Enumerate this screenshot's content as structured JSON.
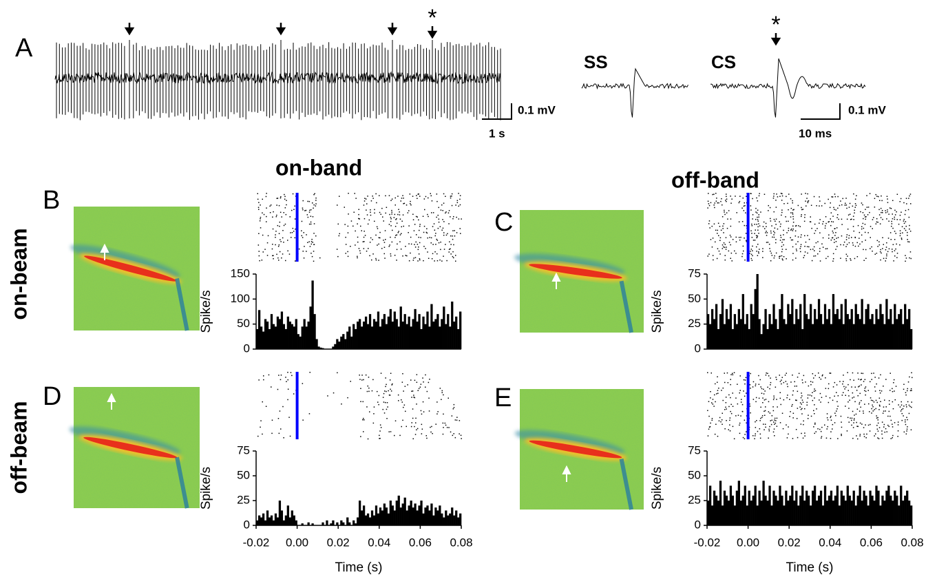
{
  "panel_a": {
    "label": "A",
    "ss": "SS",
    "cs": "CS",
    "star_trace": "*",
    "star_cs": "*",
    "trace_scale_v": "0.1 mV",
    "trace_scale_t": "1 s",
    "wave_scale_v": "0.1 mV",
    "wave_scale_t": "10 ms"
  },
  "column_headers": [
    "on-band",
    "off-band"
  ],
  "row_headers": [
    "on-beam",
    "off-beam"
  ],
  "chart_data": [
    {
      "type": "histogram",
      "panel": "B",
      "ylabel": "Spike/s",
      "color": "#000000",
      "stimulus": 0,
      "stimulus_color": "#0000ff",
      "xlim": [
        -0.02,
        0.08
      ],
      "ylim": [
        0,
        150
      ],
      "yticks": [
        0,
        50,
        100,
        150
      ],
      "bins": [
        -0.02,
        -0.019,
        -0.018,
        -0.017,
        -0.016,
        -0.015,
        -0.014,
        -0.013,
        -0.012,
        -0.011,
        -0.01,
        -0.009,
        -0.008,
        -0.007,
        -0.006,
        -0.005,
        -0.004,
        -0.003,
        -0.002,
        -0.001,
        0,
        0.001,
        0.002,
        0.003,
        0.004,
        0.005,
        0.006,
        0.007,
        0.008,
        0.009,
        0.01,
        0.011,
        0.012,
        0.013,
        0.014,
        0.015,
        0.016,
        0.017,
        0.018,
        0.019,
        0.02,
        0.021,
        0.022,
        0.023,
        0.024,
        0.025,
        0.026,
        0.027,
        0.028,
        0.029,
        0.03,
        0.031,
        0.032,
        0.033,
        0.034,
        0.035,
        0.036,
        0.037,
        0.038,
        0.039,
        0.04,
        0.041,
        0.042,
        0.043,
        0.044,
        0.045,
        0.046,
        0.047,
        0.048,
        0.049,
        0.05,
        0.051,
        0.052,
        0.053,
        0.054,
        0.055,
        0.056,
        0.057,
        0.058,
        0.059,
        0.06,
        0.061,
        0.062,
        0.063,
        0.064,
        0.065,
        0.066,
        0.067,
        0.068,
        0.069,
        0.07,
        0.071,
        0.072,
        0.073,
        0.074,
        0.075,
        0.076,
        0.077,
        0.078,
        0.079,
        0.08
      ],
      "values": [
        40,
        78,
        45,
        35,
        60,
        55,
        40,
        70,
        50,
        45,
        65,
        60,
        75,
        50,
        40,
        65,
        55,
        50,
        45,
        60,
        30,
        25,
        45,
        60,
        45,
        55,
        85,
        137,
        70,
        20,
        5,
        3,
        2,
        0,
        0,
        0,
        0,
        5,
        10,
        20,
        15,
        25,
        30,
        20,
        35,
        45,
        25,
        50,
        40,
        55,
        60,
        45,
        55,
        65,
        50,
        70,
        45,
        60,
        55,
        75,
        45,
        60,
        70,
        50,
        65,
        80,
        55,
        75,
        60,
        45,
        85,
        55,
        70,
        50,
        65,
        45,
        60,
        80,
        55,
        70,
        40,
        65,
        50,
        75,
        45,
        90,
        55,
        60,
        70,
        45,
        60,
        85,
        50,
        70,
        45,
        95,
        55,
        65,
        40,
        75
      ]
    },
    {
      "type": "histogram",
      "panel": "C",
      "ylabel": "Spike/s",
      "color": "#000000",
      "stimulus": 0,
      "stimulus_color": "#0000ff",
      "xlim": [
        -0.02,
        0.08
      ],
      "ylim": [
        0,
        75
      ],
      "yticks": [
        0,
        25,
        50,
        75
      ],
      "bins": [
        -0.02,
        -0.019,
        -0.018,
        -0.017,
        -0.016,
        -0.015,
        -0.014,
        -0.013,
        -0.012,
        -0.011,
        -0.01,
        -0.009,
        -0.008,
        -0.007,
        -0.006,
        -0.005,
        -0.004,
        -0.003,
        -0.002,
        -0.001,
        0,
        0.001,
        0.002,
        0.003,
        0.004,
        0.005,
        0.006,
        0.007,
        0.008,
        0.009,
        0.01,
        0.011,
        0.012,
        0.013,
        0.014,
        0.015,
        0.016,
        0.017,
        0.018,
        0.019,
        0.02,
        0.021,
        0.022,
        0.023,
        0.024,
        0.025,
        0.026,
        0.027,
        0.028,
        0.029,
        0.03,
        0.031,
        0.032,
        0.033,
        0.034,
        0.035,
        0.036,
        0.037,
        0.038,
        0.039,
        0.04,
        0.041,
        0.042,
        0.043,
        0.044,
        0.045,
        0.046,
        0.047,
        0.048,
        0.049,
        0.05,
        0.051,
        0.052,
        0.053,
        0.054,
        0.055,
        0.056,
        0.057,
        0.058,
        0.059,
        0.06,
        0.061,
        0.062,
        0.063,
        0.064,
        0.065,
        0.066,
        0.067,
        0.068,
        0.069,
        0.07,
        0.071,
        0.072,
        0.073,
        0.074,
        0.075,
        0.076,
        0.077,
        0.078,
        0.079,
        0.08
      ],
      "values": [
        35,
        25,
        40,
        30,
        45,
        20,
        35,
        50,
        25,
        40,
        30,
        45,
        20,
        35,
        25,
        40,
        30,
        55,
        25,
        35,
        20,
        45,
        35,
        60,
        75,
        30,
        15,
        25,
        40,
        20,
        35,
        25,
        45,
        30,
        20,
        40,
        55,
        30,
        25,
        45,
        35,
        50,
        25,
        40,
        30,
        45,
        20,
        55,
        35,
        30,
        45,
        25,
        40,
        30,
        50,
        35,
        25,
        45,
        30,
        40,
        25,
        55,
        35,
        40,
        30,
        45,
        25,
        50,
        35,
        30,
        40,
        25,
        45,
        35,
        30,
        50,
        25,
        40,
        45,
        30,
        35,
        25,
        40,
        30,
        45,
        35,
        25,
        50,
        30,
        40,
        25,
        45,
        30,
        35,
        40,
        25,
        45,
        30,
        40,
        20
      ]
    },
    {
      "type": "histogram",
      "panel": "D",
      "ylabel": "Spike/s",
      "xlabel": "Time (s)",
      "color": "#000000",
      "stimulus": 0,
      "stimulus_color": "#0000ff",
      "xlim": [
        -0.02,
        0.08
      ],
      "ylim": [
        0,
        75
      ],
      "yticks": [
        0,
        25,
        50,
        75
      ],
      "xticks": [
        -0.02,
        {
          "value": 0,
          "label": "0.00"
        },
        0.02,
        0.04,
        0.06,
        0.08
      ],
      "bins": [
        -0.02,
        -0.019,
        -0.018,
        -0.017,
        -0.016,
        -0.015,
        -0.014,
        -0.013,
        -0.012,
        -0.011,
        -0.01,
        -0.009,
        -0.008,
        -0.007,
        -0.006,
        -0.005,
        -0.004,
        -0.003,
        -0.002,
        -0.001,
        0,
        0.001,
        0.002,
        0.003,
        0.004,
        0.005,
        0.006,
        0.007,
        0.008,
        0.009,
        0.01,
        0.011,
        0.012,
        0.013,
        0.014,
        0.015,
        0.016,
        0.017,
        0.018,
        0.019,
        0.02,
        0.021,
        0.022,
        0.023,
        0.024,
        0.025,
        0.026,
        0.027,
        0.028,
        0.029,
        0.03,
        0.031,
        0.032,
        0.033,
        0.034,
        0.035,
        0.036,
        0.037,
        0.038,
        0.039,
        0.04,
        0.041,
        0.042,
        0.043,
        0.044,
        0.045,
        0.046,
        0.047,
        0.048,
        0.049,
        0.05,
        0.051,
        0.052,
        0.053,
        0.054,
        0.055,
        0.056,
        0.057,
        0.058,
        0.059,
        0.06,
        0.061,
        0.062,
        0.063,
        0.064,
        0.065,
        0.066,
        0.067,
        0.068,
        0.069,
        0.07,
        0.071,
        0.072,
        0.073,
        0.074,
        0.075,
        0.076,
        0.077,
        0.078,
        0.079,
        0.08
      ],
      "values": [
        5,
        10,
        8,
        12,
        5,
        15,
        8,
        10,
        5,
        12,
        8,
        25,
        15,
        5,
        10,
        20,
        8,
        15,
        10,
        5,
        0,
        0,
        2,
        0,
        0,
        3,
        0,
        2,
        0,
        0,
        0,
        0,
        3,
        0,
        5,
        0,
        2,
        5,
        0,
        3,
        0,
        5,
        3,
        0,
        8,
        3,
        0,
        5,
        2,
        8,
        25,
        15,
        20,
        10,
        12,
        8,
        15,
        10,
        20,
        12,
        18,
        15,
        22,
        18,
        12,
        25,
        20,
        15,
        25,
        30,
        18,
        22,
        28,
        15,
        20,
        25,
        18,
        22,
        15,
        20,
        25,
        12,
        18,
        20,
        15,
        22,
        10,
        18,
        15,
        20,
        12,
        8,
        15,
        10,
        12,
        18,
        10,
        15,
        8,
        12
      ]
    },
    {
      "type": "histogram",
      "panel": "E",
      "ylabel": "Spike/s",
      "xlabel": "Time (s)",
      "color": "#000000",
      "stimulus": 0,
      "stimulus_color": "#0000ff",
      "xlim": [
        -0.02,
        0.08
      ],
      "ylim": [
        0,
        75
      ],
      "yticks": [
        0,
        25,
        50,
        75
      ],
      "xticks": [
        -0.02,
        {
          "value": 0,
          "label": "0.00"
        },
        0.02,
        0.04,
        0.06,
        0.08
      ],
      "bins": [
        -0.02,
        -0.019,
        -0.018,
        -0.017,
        -0.016,
        -0.015,
        -0.014,
        -0.013,
        -0.012,
        -0.011,
        -0.01,
        -0.009,
        -0.008,
        -0.007,
        -0.006,
        -0.005,
        -0.004,
        -0.003,
        -0.002,
        -0.001,
        0,
        0.001,
        0.002,
        0.003,
        0.004,
        0.005,
        0.006,
        0.007,
        0.008,
        0.009,
        0.01,
        0.011,
        0.012,
        0.013,
        0.014,
        0.015,
        0.016,
        0.017,
        0.018,
        0.019,
        0.02,
        0.021,
        0.022,
        0.023,
        0.024,
        0.025,
        0.026,
        0.027,
        0.028,
        0.029,
        0.03,
        0.031,
        0.032,
        0.033,
        0.034,
        0.035,
        0.036,
        0.037,
        0.038,
        0.039,
        0.04,
        0.041,
        0.042,
        0.043,
        0.044,
        0.045,
        0.046,
        0.047,
        0.048,
        0.049,
        0.05,
        0.051,
        0.052,
        0.053,
        0.054,
        0.055,
        0.056,
        0.057,
        0.058,
        0.059,
        0.06,
        0.061,
        0.062,
        0.063,
        0.064,
        0.065,
        0.066,
        0.067,
        0.068,
        0.069,
        0.07,
        0.071,
        0.072,
        0.073,
        0.074,
        0.075,
        0.076,
        0.077,
        0.078,
        0.079,
        0.08
      ],
      "values": [
        25,
        40,
        20,
        35,
        30,
        25,
        45,
        20,
        35,
        30,
        25,
        40,
        30,
        20,
        35,
        45,
        25,
        30,
        40,
        20,
        35,
        25,
        30,
        40,
        20,
        35,
        25,
        45,
        30,
        25,
        40,
        20,
        35,
        30,
        25,
        40,
        30,
        20,
        35,
        25,
        30,
        40,
        25,
        35,
        20,
        30,
        40,
        25,
        35,
        30,
        20,
        35,
        40,
        25,
        30,
        35,
        20,
        40,
        25,
        30,
        35,
        25,
        30,
        40,
        20,
        35,
        30,
        25,
        40,
        30,
        25,
        35,
        20,
        30,
        40,
        25,
        35,
        30,
        20,
        35,
        30,
        25,
        40,
        35,
        20,
        30,
        25,
        35,
        40,
        30,
        25,
        35,
        30,
        20,
        40,
        25,
        30,
        35,
        25,
        20
      ]
    }
  ]
}
